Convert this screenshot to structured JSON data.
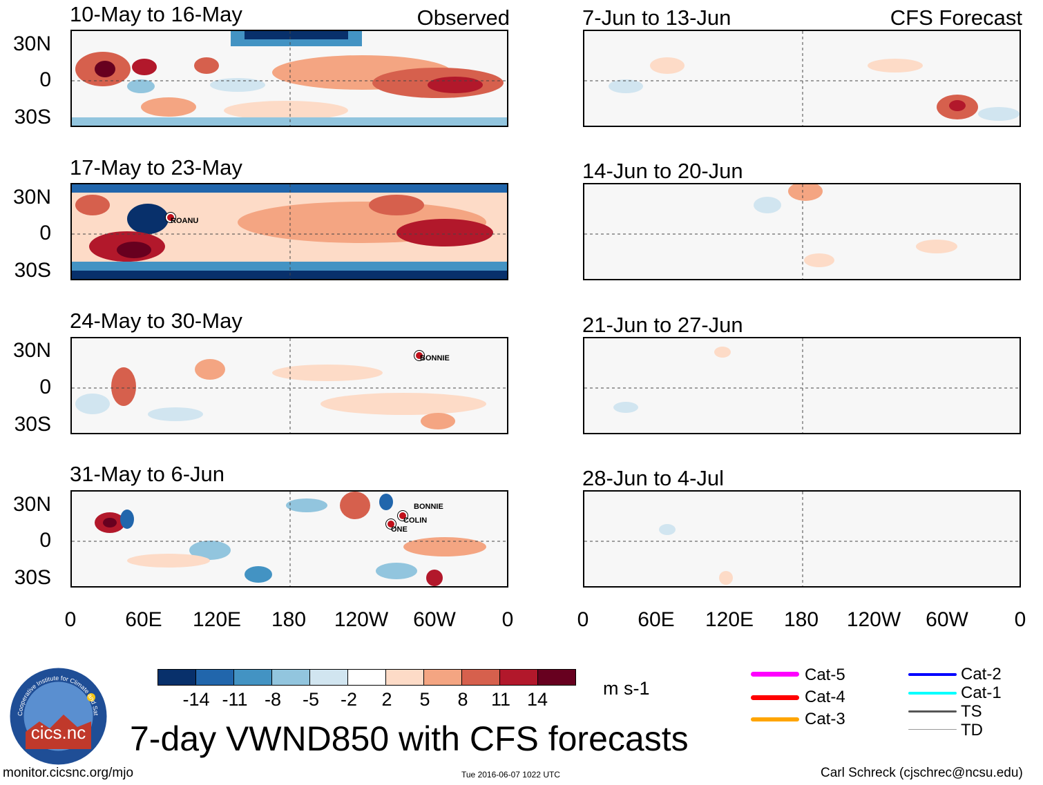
{
  "observed_header": "Observed",
  "forecast_header": "CFS Forecast",
  "observed_panels": [
    {
      "period": "10-May to 16-May",
      "storms": []
    },
    {
      "period": "17-May to 23-May",
      "storms": [
        "ROANU"
      ]
    },
    {
      "period": "24-May to 30-May",
      "storms": [
        "BONNIE"
      ]
    },
    {
      "period": "31-May to 6-Jun",
      "storms": [
        "BONNIE",
        "COLIN",
        "ONE"
      ]
    }
  ],
  "forecast_panels": [
    {
      "period": "7-Jun to 13-Jun"
    },
    {
      "period": "14-Jun to 20-Jun"
    },
    {
      "period": "21-Jun to 27-Jun"
    },
    {
      "period": "28-Jun to 4-Jul"
    }
  ],
  "lat_labels": [
    "30N",
    "0",
    "30S"
  ],
  "lon_labels": [
    "0",
    "60E",
    "120E",
    "180",
    "120W",
    "60W",
    "0"
  ],
  "colorbar": {
    "ticks": [
      "-14",
      "-11",
      "-8",
      "-5",
      "-2",
      "2",
      "5",
      "8",
      "11",
      "14"
    ],
    "colors": [
      "#08306b",
      "#2166ac",
      "#4393c3",
      "#92c5de",
      "#d1e5f0",
      "#ffffff",
      "#fddbc7",
      "#f4a582",
      "#d6604d",
      "#b2182b",
      "#67001f"
    ],
    "unit": "m s-1"
  },
  "storm_legend": [
    {
      "label": "Cat-5",
      "color": "#ff00ff"
    },
    {
      "label": "Cat-4",
      "color": "#ff0000"
    },
    {
      "label": "Cat-3",
      "color": "#ffa500"
    },
    {
      "label": "Cat-2",
      "color": "#0000ff"
    },
    {
      "label": "Cat-1",
      "color": "#00ffff"
    },
    {
      "label": "TS",
      "color": "#555555"
    },
    {
      "label": "TD",
      "color": "#999999"
    }
  ],
  "logo_text": "cics.nc",
  "logo_ring_text": "Cooperative Institute for Climate and Satellites",
  "main_title": "7-day VWND850 with CFS forecasts",
  "footer": {
    "left": "monitor.cicsnc.org/mjo",
    "center": "Tue 2016-06-07 1022 UTC",
    "right": "Carl Schreck (cjschrec@ncsu.edu)"
  }
}
